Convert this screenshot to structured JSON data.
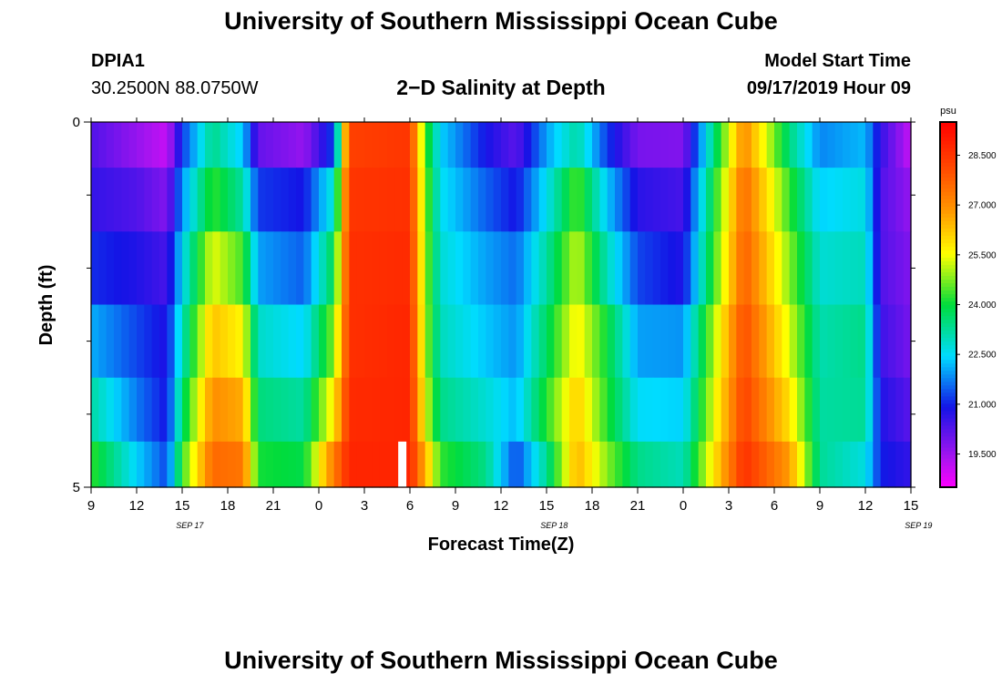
{
  "header": {
    "title": "University of Southern Mississippi Ocean Cube",
    "station": "DPIA1",
    "coordinates": "30.2500N 88.0750W",
    "plot_title": "2−D Salinity at Depth",
    "model_start_label": "Model Start Time",
    "model_start_value": "09/17/2019 Hour 09"
  },
  "footer": {
    "title": "University of Southern Mississippi Ocean Cube"
  },
  "chart_data": {
    "type": "heatmap",
    "title": "2−D Salinity at Depth",
    "xlabel": "Forecast Time(Z)",
    "ylabel": "Depth (ft)",
    "x_tick_labels": [
      "9",
      "12",
      "15",
      "18",
      "21",
      "0",
      "3",
      "6",
      "9",
      "12",
      "15",
      "18",
      "21",
      "0",
      "3",
      "6",
      "9",
      "12",
      "15"
    ],
    "date_labels": [
      {
        "label": "SEP 17",
        "at_hour": 15.5
      },
      {
        "label": "SEP 18",
        "at_hour": 39.5
      },
      {
        "label": "SEP 19",
        "at_hour": 63.5
      }
    ],
    "x_range_hours": [
      0,
      54
    ],
    "ylim": [
      0,
      5
    ],
    "y_tick_labels": [
      "0",
      "5"
    ],
    "depth_layers": [
      0.25,
      1.0,
      2.0,
      3.0,
      4.0,
      4.75
    ],
    "unit": "psu",
    "colorbar_ticks": [
      19.5,
      21.0,
      22.5,
      24.0,
      25.5,
      27.0,
      28.5
    ],
    "colorbar_labels": [
      "19.500",
      "21.000",
      "22.500",
      "24.000",
      "25.500",
      "27.000",
      "28.500"
    ],
    "colorbar_range": [
      18.5,
      29.5
    ],
    "salinity_keyframes": [
      {
        "hour": 0,
        "values": [
          20.3,
          20.6,
          21.1,
          22.1,
          23.2,
          24.3
        ]
      },
      {
        "hour": 3,
        "values": [
          19.6,
          20.3,
          20.8,
          21.3,
          21.7,
          22.4
        ]
      },
      {
        "hour": 5,
        "values": [
          19.1,
          19.8,
          20.4,
          20.8,
          20.9,
          21.3
        ]
      },
      {
        "hour": 6,
        "values": [
          21.2,
          21.9,
          22.5,
          23.0,
          23.6,
          24.3
        ]
      },
      {
        "hour": 8,
        "values": [
          23.4,
          24.3,
          25.4,
          26.3,
          27.0,
          27.6
        ]
      },
      {
        "hour": 10,
        "values": [
          22.3,
          23.2,
          24.4,
          25.6,
          26.6,
          27.4
        ]
      },
      {
        "hour": 11,
        "values": [
          20.1,
          21.2,
          22.0,
          22.9,
          23.5,
          24.1
        ]
      },
      {
        "hour": 14,
        "values": [
          19.6,
          20.9,
          21.5,
          22.4,
          23.2,
          23.9
        ]
      },
      {
        "hour": 16,
        "values": [
          21.3,
          22.9,
          23.9,
          24.8,
          25.8,
          27.3
        ]
      },
      {
        "hour": 17,
        "values": [
          28.3,
          28.5,
          28.6,
          28.6,
          28.7,
          28.8
        ]
      },
      {
        "hour": 21,
        "values": [
          28.5,
          28.6,
          28.7,
          28.8,
          28.8,
          28.8
        ]
      },
      {
        "hour": 22,
        "values": [
          24.5,
          24.8,
          24.9,
          25.0,
          25.4,
          26.5
        ]
      },
      {
        "hour": 23,
        "values": [
          22.4,
          22.6,
          22.8,
          23.0,
          23.4,
          24.3
        ]
      },
      {
        "hour": 26,
        "values": [
          20.9,
          21.5,
          22.0,
          22.3,
          22.8,
          23.4
        ]
      },
      {
        "hour": 28,
        "values": [
          20.2,
          20.9,
          21.6,
          21.9,
          22.2,
          21.3
        ]
      },
      {
        "hour": 30,
        "values": [
          22.0,
          22.6,
          23.2,
          23.7,
          24.2,
          23.3
        ]
      },
      {
        "hour": 32,
        "values": [
          23.2,
          24.5,
          25.2,
          25.7,
          26.2,
          26.5
        ]
      },
      {
        "hour": 34,
        "values": [
          21.2,
          22.3,
          23.0,
          24.0,
          24.2,
          24.8
        ]
      },
      {
        "hour": 36,
        "values": [
          19.9,
          20.7,
          21.3,
          22.0,
          22.5,
          23.4
        ]
      },
      {
        "hour": 39,
        "values": [
          19.8,
          20.4,
          20.8,
          21.9,
          22.4,
          23.0
        ]
      },
      {
        "hour": 43,
        "values": [
          27.1,
          27.6,
          27.8,
          28.1,
          28.3,
          28.6
        ]
      },
      {
        "hour": 46,
        "values": [
          23.5,
          24.3,
          24.8,
          25.3,
          25.9,
          26.8
        ]
      },
      {
        "hour": 48,
        "values": [
          21.8,
          22.4,
          22.8,
          23.1,
          23.2,
          23.3
        ]
      },
      {
        "hour": 51,
        "values": [
          22.2,
          22.7,
          23.0,
          23.4,
          23.3,
          22.7
        ]
      },
      {
        "hour": 52,
        "values": [
          20.6,
          20.3,
          20.3,
          20.5,
          20.8,
          21.0
        ]
      },
      {
        "hour": 54,
        "values": [
          19.1,
          19.6,
          19.8,
          19.9,
          20.2,
          20.6
        ]
      }
    ],
    "current_time_marker_hour": 20.5
  }
}
